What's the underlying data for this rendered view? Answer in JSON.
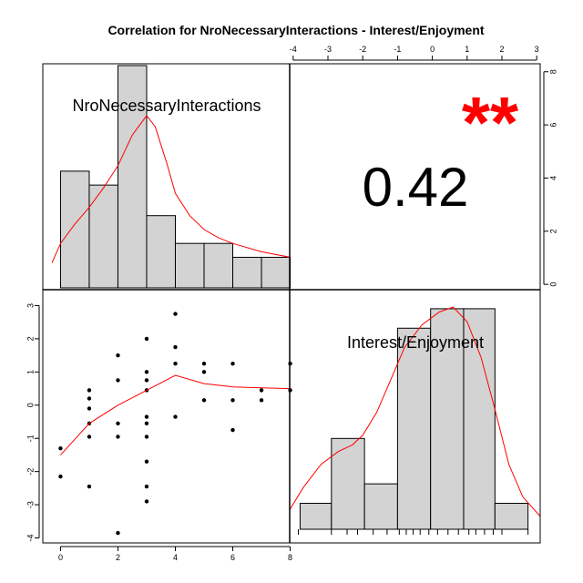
{
  "chart_data": {
    "type": "scatter-matrix",
    "title": "Correlation  for NroNecessaryInteractions - Interest/Enjoyment",
    "variables": [
      "NroNecessaryInteractions",
      "Interest/Enjoyment"
    ],
    "correlation": {
      "value": "0.42",
      "significance": "**"
    },
    "colors": {
      "histogram_fill": "#d3d3d3",
      "density_line": "#ff0000",
      "stars": "#ff0000",
      "points": "#000000",
      "smoother": "#ff0000"
    },
    "x_axis_var1": {
      "ticks": [
        "0",
        "2",
        "4",
        "6",
        "8"
      ],
      "range": [
        -0.3,
        8.3
      ]
    },
    "y_axis_var2": {
      "ticks": [
        "-4",
        "-3",
        "-2",
        "-1",
        "0",
        "1",
        "2",
        "3"
      ],
      "range": [
        -4.15,
        3.15
      ]
    },
    "top_axis_var2": {
      "ticks": [
        "-4",
        "-3",
        "-2",
        "-1",
        "0",
        "1",
        "2",
        "3"
      ],
      "range": [
        -4.1,
        3.1
      ]
    },
    "right_axis_density": {
      "ticks": [
        "0",
        "2",
        "4",
        "6",
        "8"
      ],
      "range": [
        -0.2,
        8.3
      ]
    },
    "hist_var1": {
      "bins": [
        [
          0,
          1
        ],
        [
          1,
          2
        ],
        [
          2,
          3
        ],
        [
          3,
          4
        ],
        [
          4,
          5
        ],
        [
          5,
          6
        ],
        [
          6,
          7
        ],
        [
          7,
          8
        ]
      ],
      "counts": [
        4.2,
        3.7,
        8,
        2.6,
        1.6,
        1.6,
        1.1,
        1.1
      ],
      "density": [
        [
          -0.3,
          0.9
        ],
        [
          0,
          1.6
        ],
        [
          0.5,
          2.3
        ],
        [
          1,
          2.9
        ],
        [
          1.5,
          3.6
        ],
        [
          2,
          4.4
        ],
        [
          2.5,
          5.5
        ],
        [
          3,
          6.2
        ],
        [
          3.3,
          5.8
        ],
        [
          3.7,
          4.5
        ],
        [
          4,
          3.4
        ],
        [
          4.5,
          2.6
        ],
        [
          5,
          2.1
        ],
        [
          5.5,
          1.8
        ],
        [
          6,
          1.6
        ],
        [
          7,
          1.3
        ],
        [
          8,
          1.1
        ],
        [
          8.3,
          1.0
        ]
      ]
    },
    "hist_var2": {
      "bins": [
        [
          -3.8,
          -2.9
        ],
        [
          -2.9,
          -1.95
        ],
        [
          -1.95,
          -1.0
        ],
        [
          -1.0,
          -0.05
        ],
        [
          -0.05,
          0.9
        ],
        [
          0.9,
          1.8
        ],
        [
          1.8,
          2.75
        ]
      ],
      "counts": [
        0.8,
        2.8,
        1.4,
        6.2,
        6.8,
        6.8,
        0.8
      ],
      "density": [
        [
          -4.1,
          0.6
        ],
        [
          -3.7,
          1.3
        ],
        [
          -3.2,
          2.0
        ],
        [
          -2.7,
          2.4
        ],
        [
          -2.3,
          2.6
        ],
        [
          -2.0,
          2.9
        ],
        [
          -1.6,
          3.6
        ],
        [
          -1.2,
          4.6
        ],
        [
          -0.8,
          5.6
        ],
        [
          -0.3,
          6.3
        ],
        [
          0.2,
          6.7
        ],
        [
          0.6,
          6.85
        ],
        [
          1.0,
          6.4
        ],
        [
          1.4,
          5.3
        ],
        [
          1.8,
          3.7
        ],
        [
          2.2,
          2.0
        ],
        [
          2.6,
          1.0
        ],
        [
          3.1,
          0.4
        ]
      ],
      "rug": [
        -3.85,
        -2.9,
        -2.45,
        -2.15,
        -1.7,
        -1.3,
        -0.95,
        -0.75,
        -0.55,
        -0.35,
        -0.1,
        0.15,
        0.45,
        0.75,
        1.05,
        1.25,
        1.5,
        1.75,
        2.0,
        2.75
      ]
    },
    "scatter_points": [
      [
        0,
        -1.3
      ],
      [
        0,
        -2.15
      ],
      [
        1,
        0.45
      ],
      [
        1,
        0.2
      ],
      [
        1,
        -0.1
      ],
      [
        1,
        -0.55
      ],
      [
        1,
        -0.95
      ],
      [
        1,
        -2.45
      ],
      [
        2,
        1.5
      ],
      [
        2,
        0.75
      ],
      [
        2,
        -0.55
      ],
      [
        2,
        -0.95
      ],
      [
        2,
        -3.85
      ],
      [
        3,
        2.0
      ],
      [
        3,
        1.0
      ],
      [
        3,
        0.75
      ],
      [
        3,
        0.45
      ],
      [
        3,
        -0.35
      ],
      [
        3,
        -0.55
      ],
      [
        3,
        -0.95
      ],
      [
        3,
        -1.7
      ],
      [
        3,
        -2.45
      ],
      [
        3,
        -2.9
      ],
      [
        4,
        2.75
      ],
      [
        4,
        1.75
      ],
      [
        4,
        1.25
      ],
      [
        4,
        -0.35
      ],
      [
        5,
        1.25
      ],
      [
        5,
        1.0
      ],
      [
        5,
        0.15
      ],
      [
        6,
        1.25
      ],
      [
        6,
        0.15
      ],
      [
        6,
        -0.75
      ],
      [
        7,
        0.45
      ],
      [
        7,
        0.15
      ],
      [
        8,
        1.25
      ],
      [
        8,
        0.45
      ]
    ],
    "smoother": [
      [
        0,
        -1.5
      ],
      [
        1,
        -0.55
      ],
      [
        2,
        0.0
      ],
      [
        3,
        0.45
      ],
      [
        4,
        0.9
      ],
      [
        5,
        0.65
      ],
      [
        6,
        0.55
      ],
      [
        7,
        0.52
      ],
      [
        8,
        0.5
      ]
    ]
  }
}
